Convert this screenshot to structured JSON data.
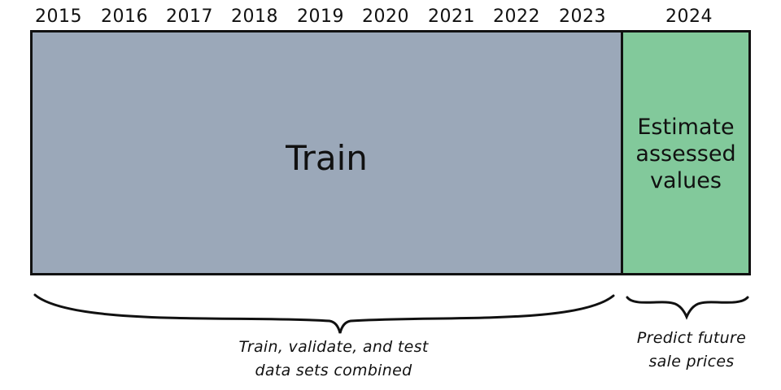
{
  "years": [
    "2015",
    "2016",
    "2017",
    "2018",
    "2019",
    "2020",
    "2021",
    "2022",
    "2023",
    "2024"
  ],
  "train_block": {
    "label": "Train",
    "color": "#9ba8b9"
  },
  "estimate_block": {
    "label_lines": [
      "Estimate",
      "assessed",
      "values"
    ],
    "color": "#82c99b"
  },
  "captions": {
    "left_lines": [
      "Train, validate, and test",
      "data sets combined"
    ],
    "right_lines": [
      "Predict future",
      "sale prices"
    ]
  }
}
